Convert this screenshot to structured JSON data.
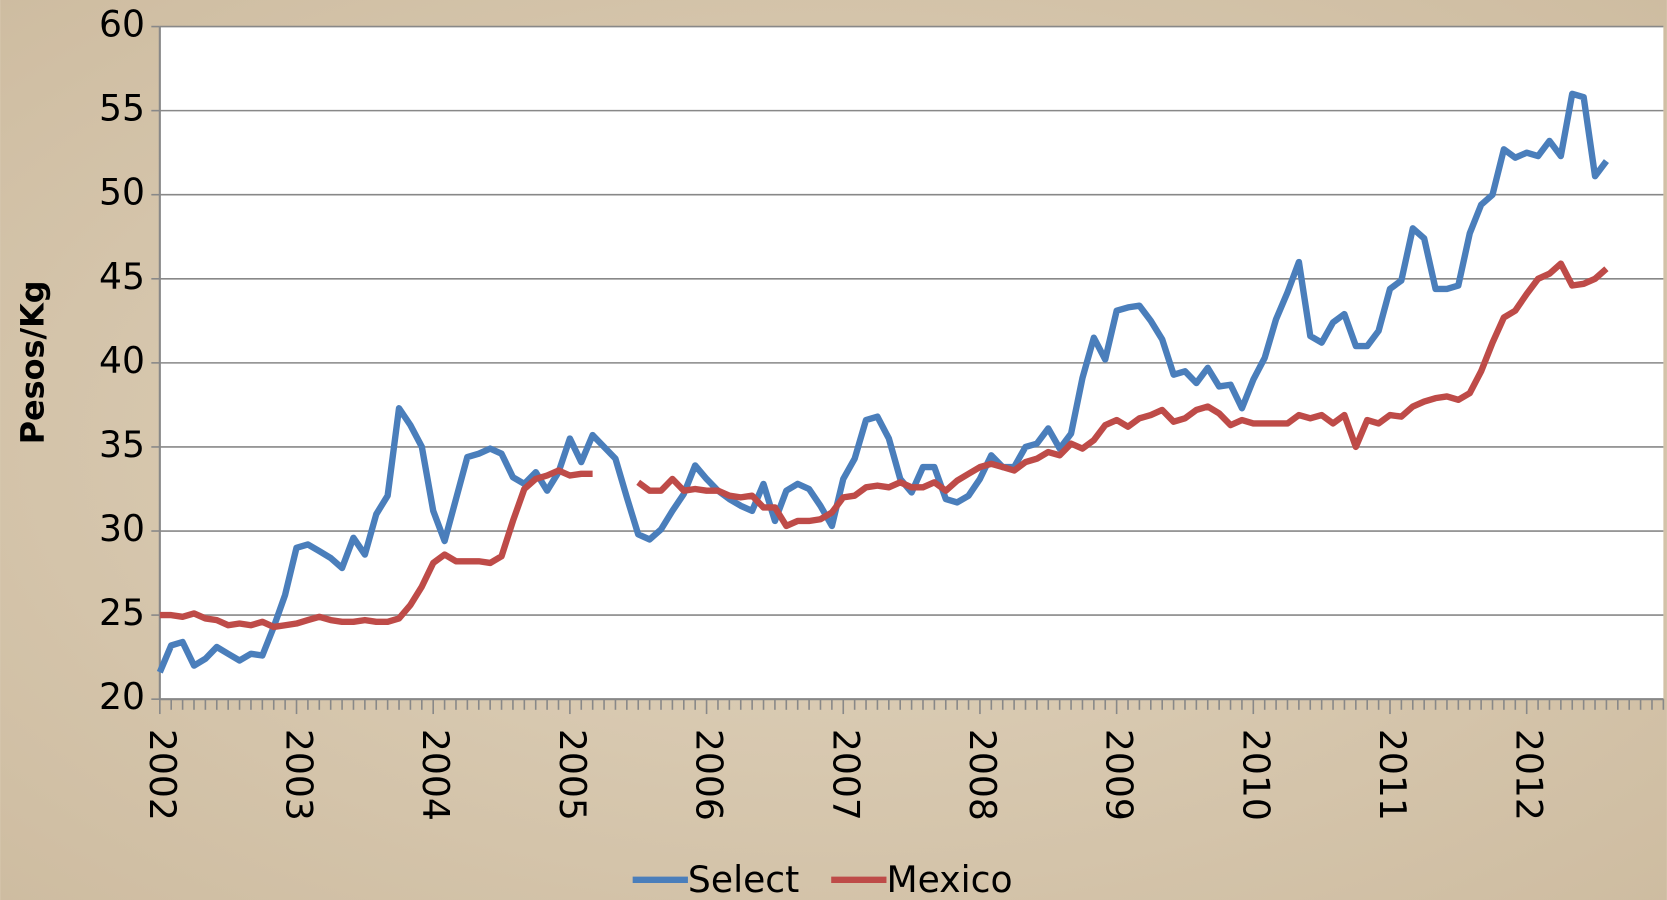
{
  "chart_data": {
    "type": "line",
    "y_label": "Pesos/Kg",
    "categories": [
      "2002",
      null,
      null,
      null,
      null,
      null,
      null,
      null,
      null,
      null,
      null,
      null,
      "2003",
      null,
      null,
      null,
      null,
      null,
      null,
      null,
      null,
      null,
      null,
      null,
      "2004",
      null,
      null,
      null,
      null,
      null,
      null,
      null,
      null,
      null,
      null,
      null,
      "2005",
      null,
      null,
      null,
      null,
      null,
      null,
      null,
      null,
      null,
      null,
      null,
      "2006",
      null,
      null,
      null,
      null,
      null,
      null,
      null,
      null,
      null,
      null,
      null,
      "2007",
      null,
      null,
      null,
      null,
      null,
      null,
      null,
      null,
      null,
      null,
      null,
      "2008",
      null,
      null,
      null,
      null,
      null,
      null,
      null,
      null,
      null,
      null,
      null,
      "2009",
      null,
      null,
      null,
      null,
      null,
      null,
      null,
      null,
      null,
      null,
      null,
      "2010",
      null,
      null,
      null,
      null,
      null,
      null,
      null,
      null,
      null,
      null,
      null,
      "2011",
      null,
      null,
      null,
      null,
      null,
      null,
      null,
      null,
      null,
      null,
      null,
      "2012",
      null,
      null,
      null,
      null,
      null,
      null,
      null,
      null,
      null,
      null,
      null
    ],
    "series": [
      {
        "name": "Select",
        "color": "#4a7ebb",
        "values": [
          21.6,
          23.2,
          23.4,
          22.0,
          22.4,
          23.1,
          22.7,
          22.3,
          22.7,
          22.6,
          24.3,
          26.2,
          29.0,
          29.2,
          28.8,
          28.4,
          27.8,
          29.6,
          28.6,
          31.0,
          32.1,
          37.3,
          36.3,
          35.0,
          31.2,
          29.4,
          31.9,
          34.4,
          34.6,
          34.9,
          34.6,
          33.2,
          32.8,
          33.5,
          32.4,
          33.5,
          35.5,
          34.1,
          35.7,
          35.0,
          34.3,
          32.0,
          29.8,
          29.5,
          30.1,
          31.2,
          32.2,
          33.9,
          33.1,
          32.4,
          31.9,
          31.5,
          31.2,
          32.8,
          30.6,
          32.4,
          32.8,
          32.5,
          31.5,
          30.3,
          33.1,
          34.3,
          36.6,
          36.8,
          35.5,
          33.1,
          32.3,
          33.8,
          33.8,
          31.9,
          31.7,
          32.1,
          33.1,
          34.5,
          33.8,
          33.8,
          35.0,
          35.2,
          36.1,
          34.9,
          35.8,
          39.1,
          41.5,
          40.2,
          43.1,
          43.3,
          43.4,
          42.5,
          41.4,
          39.3,
          39.5,
          38.8,
          39.7,
          38.6,
          38.7,
          37.3,
          39.0,
          40.3,
          42.6,
          44.2,
          46.0,
          41.6,
          41.2,
          42.4,
          42.9,
          41.0,
          41.0,
          41.9,
          44.4,
          44.9,
          48.0,
          47.4,
          44.4,
          44.4,
          44.6,
          47.7,
          49.4,
          50.0,
          52.7,
          52.2,
          52.5,
          52.3,
          53.2,
          52.3,
          56.0,
          55.8,
          51.1,
          52.0,
          null,
          null,
          null,
          null
        ]
      },
      {
        "name": "Mexico",
        "color": "#be4b48",
        "values": [
          25.0,
          25.0,
          24.9,
          25.1,
          24.8,
          24.7,
          24.4,
          24.5,
          24.4,
          24.6,
          24.3,
          24.4,
          24.5,
          24.7,
          24.9,
          24.7,
          24.6,
          24.6,
          24.7,
          24.6,
          24.6,
          24.8,
          25.6,
          26.7,
          28.1,
          28.6,
          28.2,
          28.2,
          28.2,
          28.1,
          28.5,
          30.6,
          32.5,
          33.1,
          33.3,
          33.6,
          33.3,
          33.4,
          33.4,
          null,
          null,
          null,
          32.9,
          32.4,
          32.4,
          33.1,
          32.4,
          32.5,
          32.4,
          32.4,
          32.1,
          32.0,
          32.1,
          31.4,
          31.4,
          30.3,
          30.6,
          30.6,
          30.7,
          31.1,
          32.0,
          32.1,
          32.6,
          32.7,
          32.6,
          32.9,
          32.6,
          32.6,
          32.9,
          32.4,
          33.0,
          33.4,
          33.8,
          34.0,
          33.8,
          33.6,
          34.1,
          34.3,
          34.7,
          34.5,
          35.2,
          34.9,
          35.4,
          36.3,
          36.6,
          36.2,
          36.7,
          36.9,
          37.2,
          36.5,
          36.7,
          37.2,
          37.4,
          37.0,
          36.3,
          36.6,
          36.4,
          36.4,
          36.4,
          36.4,
          36.9,
          36.7,
          36.9,
          36.4,
          36.9,
          35.0,
          36.6,
          36.4,
          36.9,
          36.8,
          37.4,
          37.7,
          37.9,
          38.0,
          37.8,
          38.2,
          39.5,
          41.2,
          42.7,
          43.1,
          44.1,
          45.0,
          45.3,
          45.9,
          44.6,
          44.7,
          45.0,
          45.6,
          null,
          null,
          null,
          null
        ]
      }
    ],
    "ylim": [
      20,
      60
    ],
    "yticks": [
      20,
      25,
      30,
      35,
      40,
      45,
      50,
      55,
      60
    ],
    "grid": true,
    "legend": "bottom"
  }
}
